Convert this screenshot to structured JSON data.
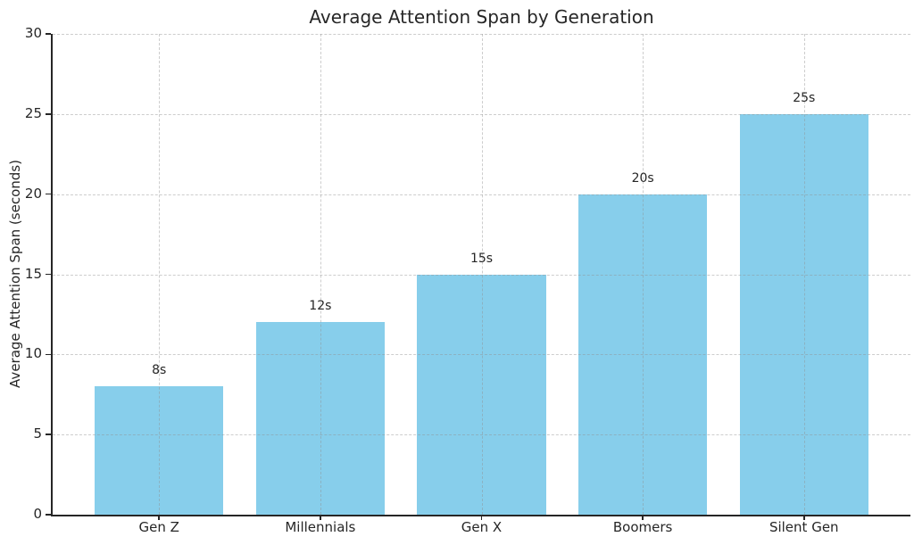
{
  "chart_data": {
    "type": "bar",
    "title": "Average Attention Span by Generation",
    "xlabel": "",
    "ylabel": "Average Attention Span (seconds)",
    "categories": [
      "Gen Z",
      "Millennials",
      "Gen X",
      "Boomers",
      "Silent Gen"
    ],
    "values": [
      8,
      12,
      15,
      20,
      25
    ],
    "value_labels": [
      "8s",
      "12s",
      "15s",
      "20s",
      "25s"
    ],
    "yticks": [
      0,
      5,
      10,
      15,
      20,
      25,
      30
    ],
    "ylim": [
      0,
      30
    ],
    "xlim": [
      -0.66,
      4.66
    ],
    "bar_width": 0.8,
    "grid": "on",
    "grid_style": "dashed",
    "legend": "none",
    "colors": {
      "bar": "#87CEEB",
      "grid": "#d9d9d9",
      "axis": "#262626",
      "text": "#262626"
    }
  }
}
